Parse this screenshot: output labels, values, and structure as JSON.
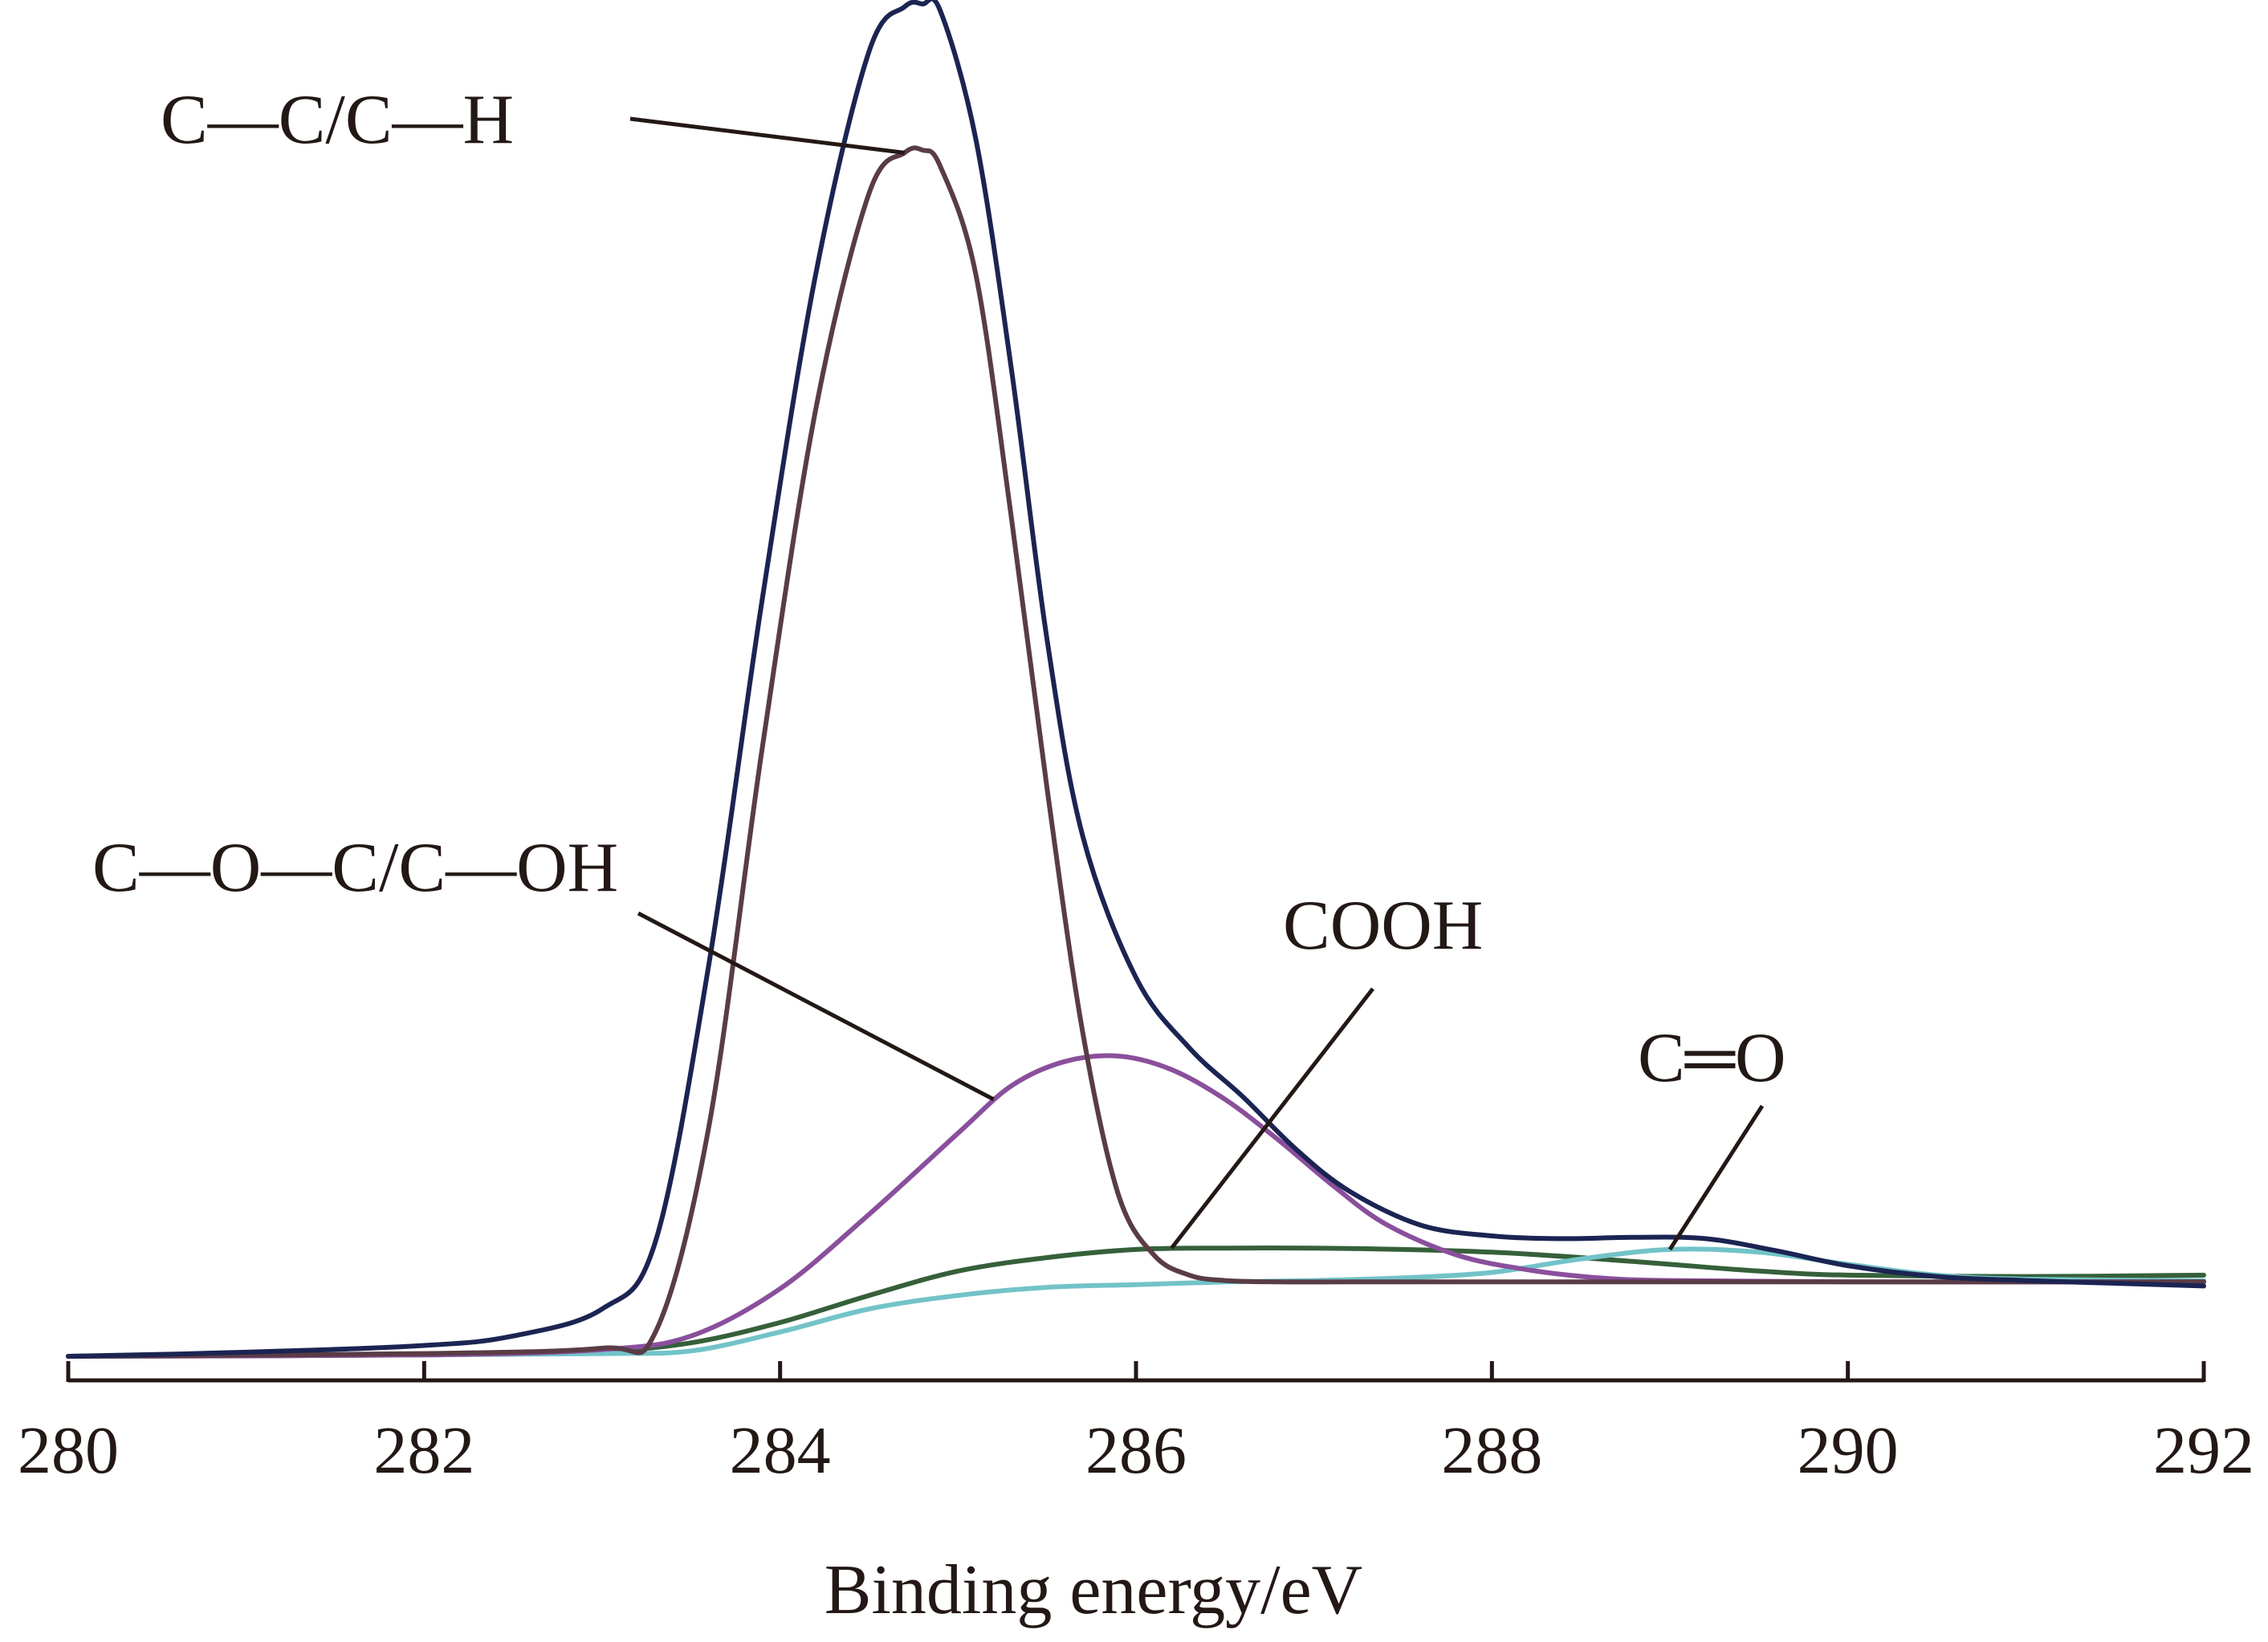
{
  "chart_data": {
    "type": "line",
    "xlabel": "Binding energy/eV",
    "ylabel": "",
    "xlim": [
      280,
      292
    ],
    "xticks": [
      280,
      282,
      284,
      286,
      288,
      290,
      292
    ],
    "ylim": [
      0,
      1.0
    ],
    "y_axis_shown": false,
    "grid": false,
    "legend": "none",
    "series": [
      {
        "key": "envelope",
        "color": "#1b2452",
        "x": [
          280,
          281,
          282,
          282.5,
          283,
          283.3,
          283.6,
          283.9,
          284.2,
          284.5,
          284.7,
          284.8,
          284.9,
          285.1,
          285.3,
          285.5,
          285.7,
          286,
          286.3,
          286.6,
          286.9,
          287.2,
          287.6,
          288,
          288.4,
          288.8,
          289.2,
          289.6,
          290,
          290.5,
          291,
          291.5,
          292
        ],
        "values": [
          0.0,
          0.003,
          0.008,
          0.015,
          0.035,
          0.085,
          0.29,
          0.56,
          0.8,
          0.965,
          0.998,
          1.0,
          0.995,
          0.9,
          0.73,
          0.53,
          0.385,
          0.28,
          0.228,
          0.192,
          0.153,
          0.122,
          0.097,
          0.089,
          0.087,
          0.088,
          0.087,
          0.078,
          0.067,
          0.059,
          0.056,
          0.054,
          0.052
        ]
      },
      {
        "key": "C-C/C-H",
        "color": "#5a3c45",
        "x": [
          280,
          282,
          283,
          283.3,
          283.6,
          283.9,
          284.2,
          284.5,
          284.7,
          284.8,
          284.9,
          285.1,
          285.3,
          285.5,
          285.7,
          285.9,
          286.1,
          286.3,
          286.5,
          286.8,
          287.2,
          288,
          290,
          292
        ],
        "values": [
          0.0,
          0.002,
          0.006,
          0.018,
          0.17,
          0.45,
          0.7,
          0.86,
          0.89,
          0.892,
          0.88,
          0.8,
          0.62,
          0.42,
          0.24,
          0.12,
          0.075,
          0.06,
          0.056,
          0.055,
          0.055,
          0.055,
          0.055,
          0.055
        ]
      },
      {
        "key": "C-O-C/C-OH",
        "color": "#8a4f9c",
        "x": [
          280,
          282,
          283,
          283.5,
          284,
          284.5,
          285,
          285.3,
          285.6,
          285.9,
          286.2,
          286.5,
          286.8,
          287.1,
          287.4,
          287.8,
          288.2,
          288.6,
          289,
          290,
          292
        ],
        "values": [
          0.0,
          0.001,
          0.005,
          0.015,
          0.05,
          0.105,
          0.165,
          0.2,
          0.218,
          0.222,
          0.212,
          0.19,
          0.16,
          0.127,
          0.098,
          0.075,
          0.064,
          0.058,
          0.056,
          0.055,
          0.055
        ]
      },
      {
        "key": "COOH",
        "color": "#35603a",
        "x": [
          280,
          282,
          283,
          283.5,
          284,
          284.5,
          285,
          285.5,
          286,
          286.5,
          287,
          287.5,
          288,
          288.5,
          289,
          289.5,
          290,
          291,
          292
        ],
        "values": [
          0.0,
          0.001,
          0.004,
          0.01,
          0.025,
          0.045,
          0.063,
          0.073,
          0.079,
          0.08,
          0.08,
          0.079,
          0.077,
          0.073,
          0.068,
          0.063,
          0.06,
          0.059,
          0.06
        ]
      },
      {
        "key": "C=O",
        "color": "#72c3c8",
        "x": [
          280,
          282,
          283,
          283.5,
          284,
          284.5,
          285,
          285.5,
          286,
          286.5,
          287,
          287.5,
          288,
          288.5,
          289,
          289.5,
          290,
          290.5,
          291,
          292
        ],
        "values": [
          0.0,
          0.001,
          0.002,
          0.004,
          0.018,
          0.035,
          0.045,
          0.051,
          0.053,
          0.055,
          0.056,
          0.058,
          0.062,
          0.072,
          0.079,
          0.077,
          0.068,
          0.06,
          0.057,
          0.056
        ]
      }
    ],
    "annotations": [
      {
        "key": "C-C/C-H",
        "text": "C—C/C—H",
        "x": 284.7,
        "y": 0.89
      },
      {
        "key": "C-O-C/C-OH",
        "text": "C—O—C/C—OH",
        "x": 285.2,
        "y": 0.19
      },
      {
        "key": "COOH",
        "text": "COOH",
        "x": 286.2,
        "y": 0.08
      },
      {
        "key": "C=O",
        "text": "C═O",
        "x": 289.0,
        "y": 0.079
      }
    ]
  }
}
